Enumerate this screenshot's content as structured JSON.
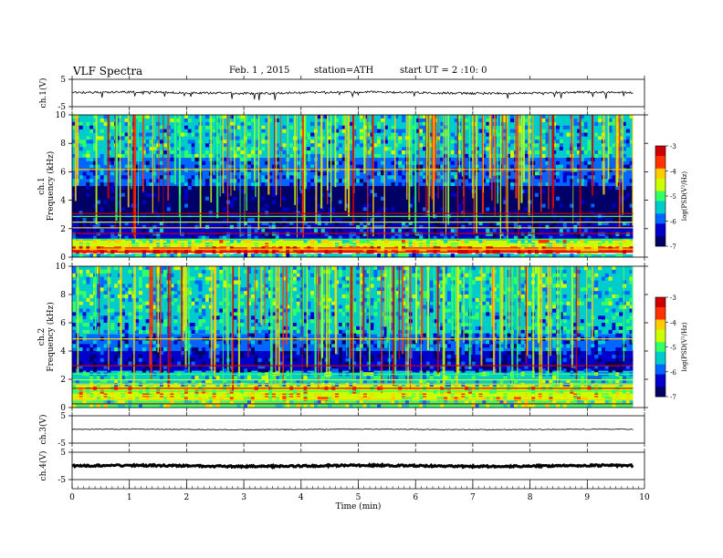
{
  "header": {
    "title": "VLF Spectra",
    "date": "Feb. 1 , 2015",
    "station": "station=ATH",
    "start": "start UT = 2 :10: 0"
  },
  "colors": {
    "colormap": [
      "#000066",
      "#0000cc",
      "#0066ff",
      "#00cccc",
      "#33ff66",
      "#ccff00",
      "#ffcc00",
      "#ff3300",
      "#cc0000",
      "#ff66ff"
    ]
  },
  "chart_data": [
    {
      "type": "line",
      "panel": "ch1-waveform",
      "ylabel": "ch.1(V)",
      "ylim": [
        -5,
        5
      ],
      "yticks": [
        "5",
        "-5"
      ],
      "description_values": {
        "mean": 0.1,
        "amplitude": 0.4
      }
    },
    {
      "type": "heatmap",
      "panel": "ch1-spectrogram",
      "ylabel": "ch.1",
      "ylabel2": "Frequency (kHz)",
      "ylim": [
        0,
        10
      ],
      "yticks": [
        "0",
        "2",
        "4",
        "6",
        "8",
        "10"
      ],
      "xlim": [
        0,
        10
      ],
      "data_end_min": 9.8,
      "colorbar": {
        "label": "log(PSD(V²/Hz)",
        "range": [
          -7,
          -3
        ],
        "ticks": [
          "-3",
          "-4",
          "-5",
          "-6",
          "-7"
        ]
      },
      "bands": [
        {
          "f_low": 0.0,
          "f_high": 0.2,
          "logpsd": -5.5
        },
        {
          "f_low": 0.3,
          "f_high": 0.7,
          "logpsd": -3.6
        },
        {
          "f_low": 0.7,
          "f_high": 1.2,
          "logpsd": -4.6
        },
        {
          "f_low": 1.2,
          "f_high": 2.5,
          "logpsd": -6.2
        },
        {
          "f_low": 2.5,
          "f_high": 5.0,
          "logpsd": -6.8
        },
        {
          "f_low": 5.0,
          "f_high": 7.0,
          "logpsd": -6.0
        },
        {
          "f_low": 7.0,
          "f_high": 10.0,
          "logpsd": -5.4
        }
      ]
    },
    {
      "type": "heatmap",
      "panel": "ch2-spectrogram",
      "ylabel": "ch.2",
      "ylabel2": "Frequency (kHz)",
      "ylim": [
        0,
        10
      ],
      "yticks": [
        "0",
        "2",
        "4",
        "6",
        "8",
        "10"
      ],
      "xlim": [
        0,
        10
      ],
      "data_end_min": 9.8,
      "colorbar": {
        "label": "log(PSD(V²/Hz)",
        "range": [
          -7,
          -3
        ],
        "ticks": [
          "-3",
          "-4",
          "-5",
          "-6",
          "-7"
        ]
      },
      "bands": [
        {
          "f_low": 0.0,
          "f_high": 0.5,
          "logpsd": -5.0
        },
        {
          "f_low": 0.5,
          "f_high": 1.6,
          "logpsd": -4.4
        },
        {
          "f_low": 1.6,
          "f_high": 2.6,
          "logpsd": -5.3
        },
        {
          "f_low": 2.6,
          "f_high": 4.0,
          "logpsd": -6.5
        },
        {
          "f_low": 4.0,
          "f_high": 5.2,
          "logpsd": -6.0
        },
        {
          "f_low": 5.2,
          "f_high": 7.0,
          "logpsd": -5.6
        },
        {
          "f_low": 7.0,
          "f_high": 10.0,
          "logpsd": -5.3
        }
      ]
    },
    {
      "type": "line",
      "panel": "ch3-waveform",
      "ylabel": "ch.3(V)",
      "ylim": [
        -5,
        5
      ],
      "yticks": [
        "5",
        "-5"
      ],
      "description_values": {
        "mean": 0.0,
        "amplitude": 0.15
      }
    },
    {
      "type": "line",
      "panel": "ch4-waveform",
      "ylabel": "ch.4(V)",
      "ylim": [
        -5,
        5
      ],
      "yticks": [
        "5",
        "-5"
      ],
      "description_values": {
        "mean": 0.0,
        "amplitude": 0.3
      }
    }
  ],
  "xaxis": {
    "label": "Time (min)",
    "xlim": [
      0,
      10
    ],
    "ticks": [
      "0",
      "1",
      "2",
      "3",
      "4",
      "5",
      "6",
      "7",
      "8",
      "9",
      "10"
    ]
  }
}
